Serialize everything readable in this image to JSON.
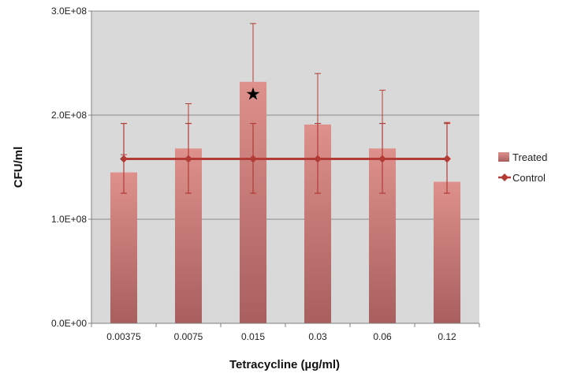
{
  "chart_data": {
    "type": "bar",
    "title": "",
    "xlabel": "Tetracycline (µg/ml)",
    "ylabel": "CFU/ml",
    "categories": [
      "0.00375",
      "0.0075",
      "0.015",
      "0.03",
      "0.06",
      "0.12"
    ],
    "ylim": [
      0,
      300000000
    ],
    "yticks": [
      0,
      100000000,
      200000000,
      300000000
    ],
    "ytick_labels": [
      "0.0E+00",
      "1.0E+08",
      "2.0E+08",
      "3.0E+08"
    ],
    "grid": true,
    "legend_position": "right",
    "series": [
      {
        "name": "Treated",
        "kind": "bar",
        "values": [
          145000000,
          168000000,
          232000000,
          191000000,
          168000000,
          136000000
        ],
        "error_upper": [
          162000000,
          211000000,
          288000000,
          240000000,
          224000000,
          193000000
        ],
        "color": "#d98a86"
      },
      {
        "name": "Control",
        "kind": "line",
        "values": [
          158000000,
          158000000,
          158000000,
          158000000,
          158000000,
          158000000
        ],
        "error_low": [
          125000000,
          125000000,
          125000000,
          125000000,
          125000000,
          125000000
        ],
        "error_high": [
          192000000,
          192000000,
          192000000,
          192000000,
          192000000,
          192000000
        ],
        "color": "#b23b35"
      }
    ],
    "annotations": [
      {
        "category": "0.015",
        "symbol": "★",
        "y": 221000000
      }
    ]
  },
  "colors": {
    "plot_bg": "#d9d9d9",
    "grid": "#8c8c8c"
  }
}
